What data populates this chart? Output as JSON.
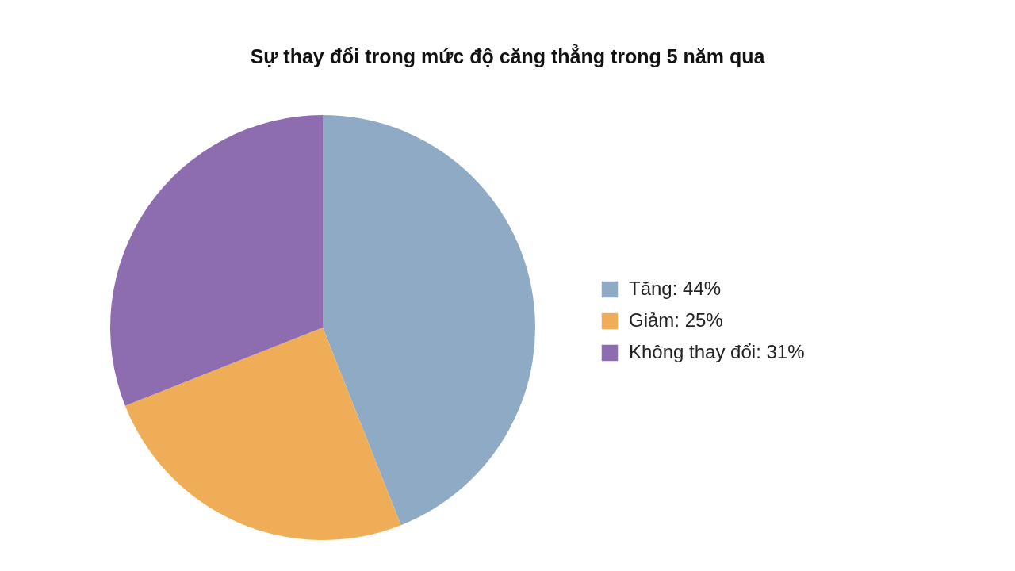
{
  "chart_data": {
    "type": "pie",
    "title": "Sự thay đổi trong mức độ căng thẳng trong 5 năm qua",
    "categories": [
      "Tăng: 44%",
      "Giảm: 25%",
      "Không thay đổi: 31%"
    ],
    "values": [
      44,
      25,
      31
    ],
    "colors": [
      "#8eaac5",
      "#f0ad58",
      "#8d6db0"
    ],
    "legend": "right"
  }
}
